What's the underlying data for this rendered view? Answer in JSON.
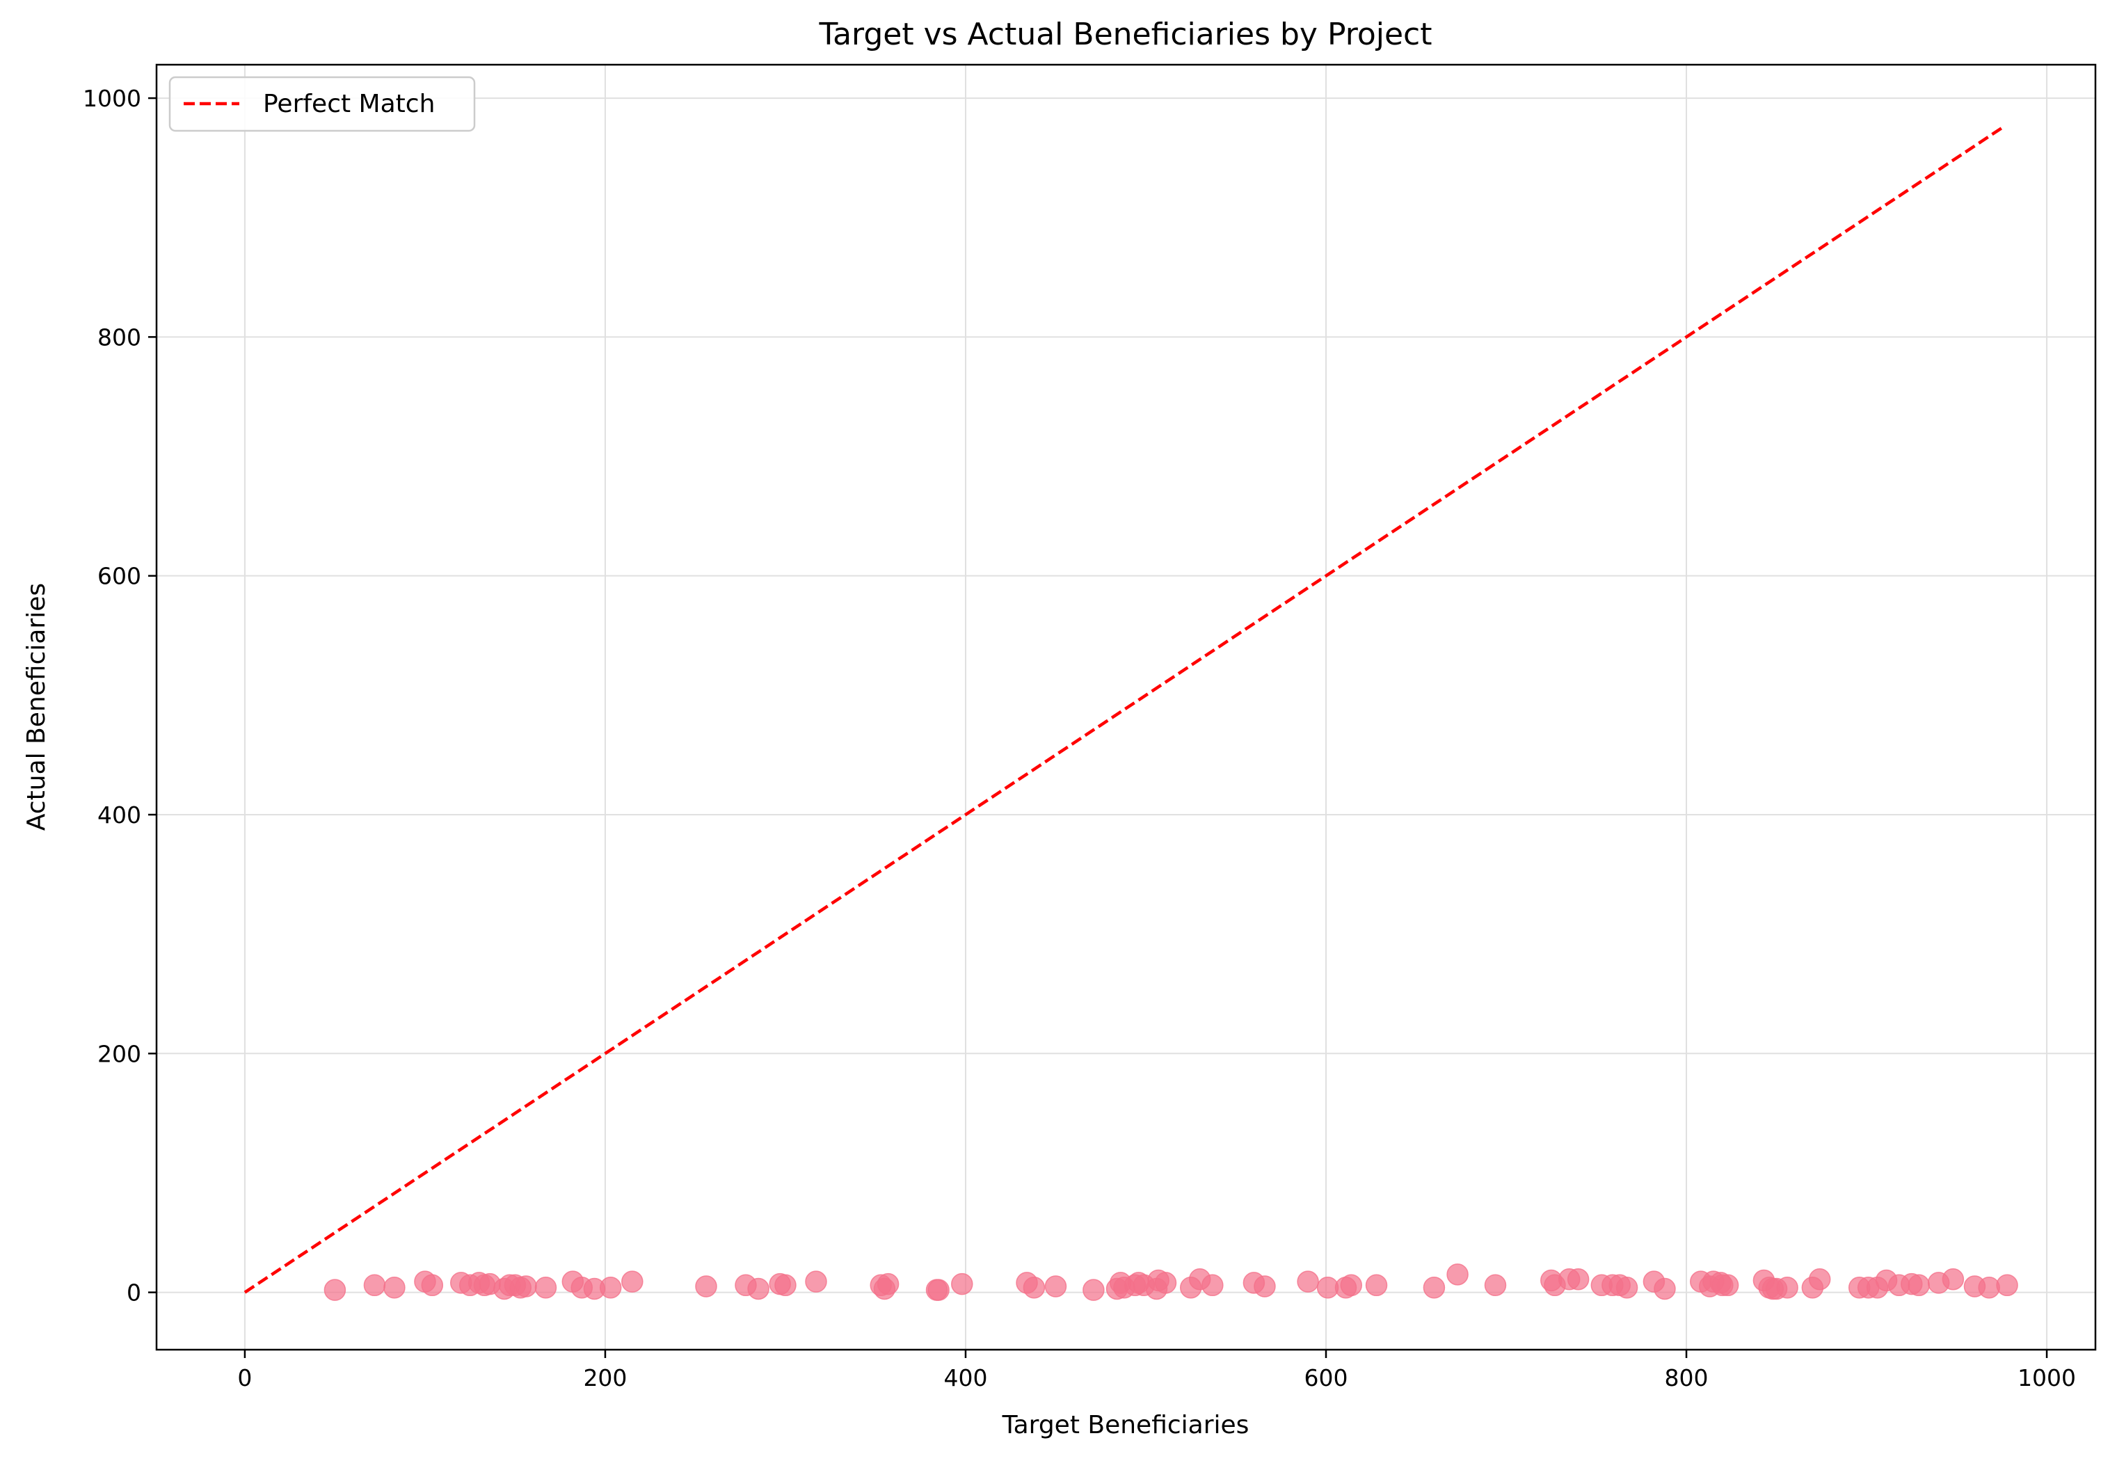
{
  "chart_data": {
    "type": "scatter",
    "title": "Target vs Actual Beneficiaries by Project",
    "xlabel": "Target Beneficiaries",
    "ylabel": "Actual Beneficiaries",
    "xlim": [
      -49,
      1027
    ],
    "ylim": [
      -48,
      1028
    ],
    "xticks": [
      0,
      200,
      400,
      600,
      800,
      1000
    ],
    "yticks": [
      0,
      200,
      400,
      600,
      800,
      1000
    ],
    "xtick_labels": [
      "0",
      "200",
      "400",
      "600",
      "800",
      "1000"
    ],
    "ytick_labels": [
      "0",
      "200",
      "400",
      "600",
      "800",
      "1000"
    ],
    "grid": true,
    "legend": {
      "placement": "top-left",
      "entries": [
        "Perfect Match"
      ]
    },
    "colors": {
      "points": "#f4718a",
      "reference_line": "#ff0000",
      "grid": "#e0e0e0"
    },
    "reference_line": {
      "name": "Perfect Match",
      "x": [
        0,
        976
      ],
      "y": [
        0,
        976
      ],
      "style": "dashed"
    },
    "series": [
      {
        "points": [
          [
            50,
            2
          ],
          [
            72,
            6
          ],
          [
            83,
            4
          ],
          [
            100,
            9
          ],
          [
            104,
            6
          ],
          [
            120,
            8
          ],
          [
            125,
            6
          ],
          [
            130,
            8
          ],
          [
            133,
            6
          ],
          [
            136,
            7
          ],
          [
            144,
            3
          ],
          [
            147,
            6
          ],
          [
            150,
            6
          ],
          [
            153,
            4
          ],
          [
            156,
            5
          ],
          [
            167,
            4
          ],
          [
            182,
            9
          ],
          [
            187,
            4
          ],
          [
            194,
            3
          ],
          [
            203,
            4
          ],
          [
            215,
            9
          ],
          [
            256,
            5
          ],
          [
            278,
            6
          ],
          [
            285,
            3
          ],
          [
            297,
            7
          ],
          [
            300,
            6
          ],
          [
            317,
            9
          ],
          [
            353,
            6
          ],
          [
            355,
            3
          ],
          [
            357,
            7
          ],
          [
            384,
            2
          ],
          [
            385,
            2
          ],
          [
            398,
            7
          ],
          [
            434,
            8
          ],
          [
            438,
            4
          ],
          [
            450,
            5
          ],
          [
            471,
            2
          ],
          [
            484,
            3
          ],
          [
            486,
            8
          ],
          [
            488,
            4
          ],
          [
            494,
            6
          ],
          [
            496,
            8
          ],
          [
            499,
            6
          ],
          [
            506,
            3
          ],
          [
            507,
            10
          ],
          [
            511,
            8
          ],
          [
            525,
            4
          ],
          [
            530,
            11
          ],
          [
            537,
            6
          ],
          [
            560,
            8
          ],
          [
            566,
            5
          ],
          [
            590,
            9
          ],
          [
            601,
            4
          ],
          [
            611,
            4
          ],
          [
            614,
            6
          ],
          [
            628,
            6
          ],
          [
            660,
            4
          ],
          [
            673,
            15
          ],
          [
            694,
            6
          ],
          [
            725,
            10
          ],
          [
            727,
            6
          ],
          [
            735,
            11
          ],
          [
            740,
            11
          ],
          [
            753,
            6
          ],
          [
            759,
            6
          ],
          [
            763,
            6
          ],
          [
            767,
            4
          ],
          [
            782,
            9
          ],
          [
            788,
            3
          ],
          [
            808,
            9
          ],
          [
            813,
            5
          ],
          [
            815,
            9
          ],
          [
            819,
            8
          ],
          [
            820,
            6
          ],
          [
            823,
            6
          ],
          [
            843,
            10
          ],
          [
            846,
            4
          ],
          [
            848,
            3
          ],
          [
            850,
            3
          ],
          [
            856,
            4
          ],
          [
            870,
            4
          ],
          [
            874,
            11
          ],
          [
            896,
            4
          ],
          [
            901,
            4
          ],
          [
            906,
            4
          ],
          [
            911,
            10
          ],
          [
            918,
            6
          ],
          [
            925,
            7
          ],
          [
            929,
            6
          ],
          [
            940,
            8
          ],
          [
            948,
            11
          ],
          [
            960,
            5
          ],
          [
            968,
            4
          ],
          [
            978,
            6
          ]
        ]
      }
    ]
  }
}
